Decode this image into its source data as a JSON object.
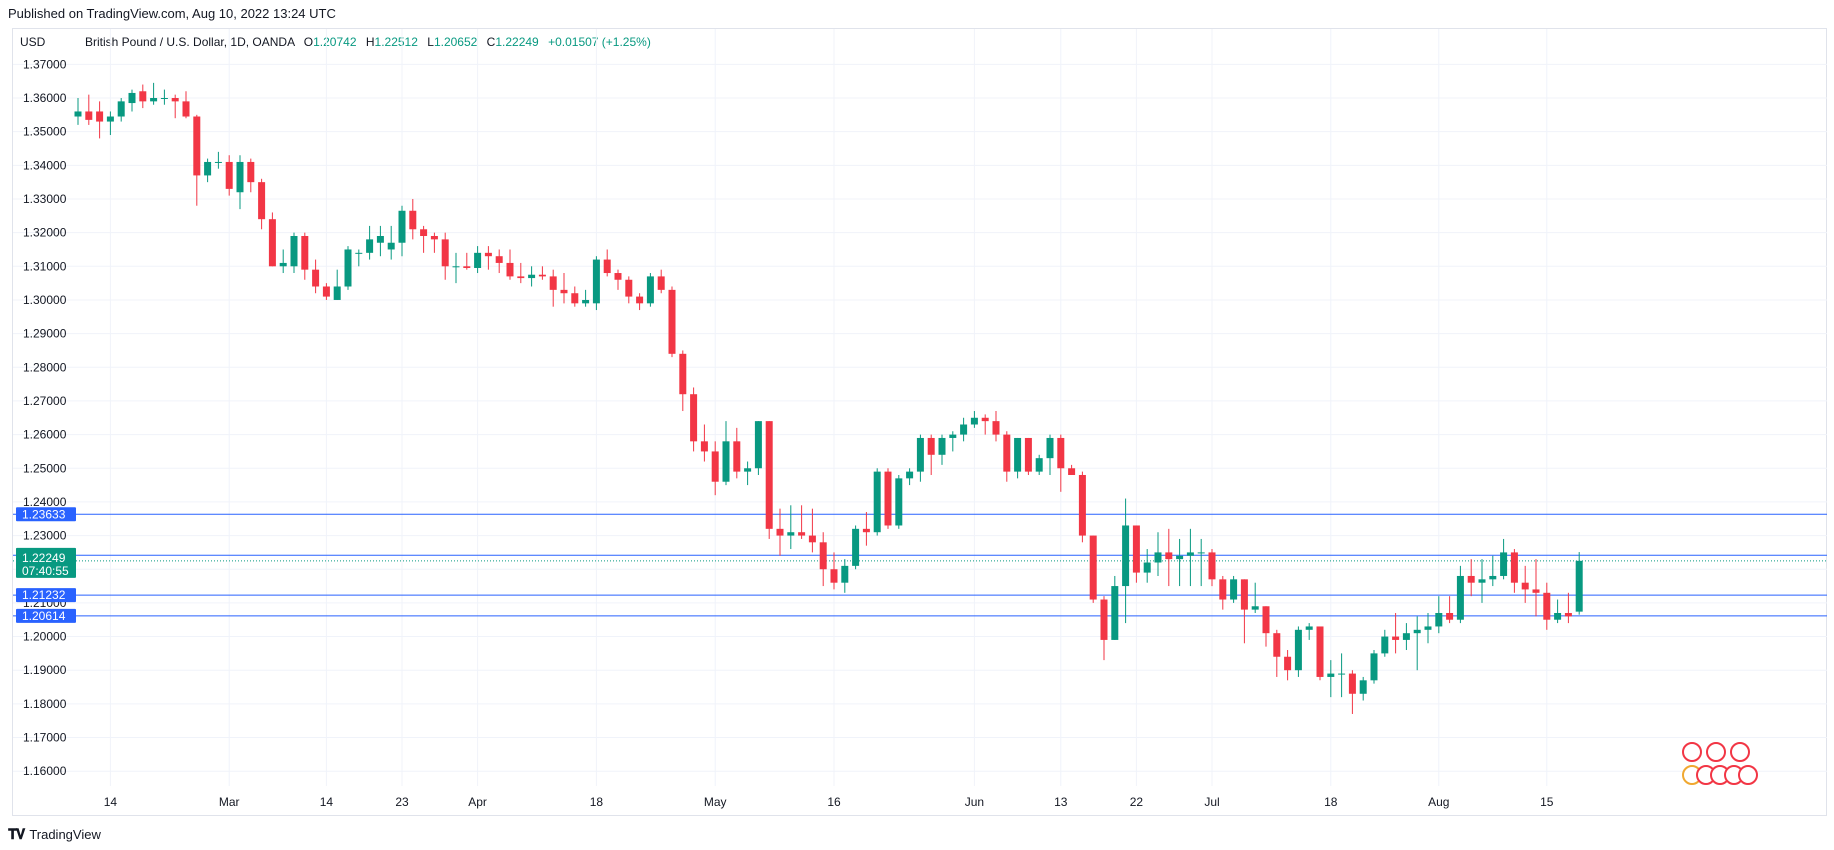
{
  "header": {
    "published": "Published on TradingView.com, Aug 10, 2022 13:24 UTC"
  },
  "footer": {
    "brand": "TradingView"
  },
  "legend": {
    "currency": "USD",
    "symbol": "British Pound / U.S. Dollar, 1D, OANDA",
    "o": "1.20742",
    "h": "1.22512",
    "l": "1.20652",
    "c": "1.22249",
    "change": "+0.01507 (+1.25%)",
    "o_label": "O",
    "h_label": "H",
    "l_label": "L",
    "c_label": "C"
  },
  "colors": {
    "up": "#089981",
    "down": "#f23645",
    "hline": "#2962ff",
    "grid": "#f0f3fa"
  },
  "chart_data": {
    "type": "candlestick",
    "symbol": "GBPUSD",
    "timeframe": "1D",
    "ylim": [
      1.16,
      1.38
    ],
    "y_ticks": [
      "1.16000",
      "1.17000",
      "1.18000",
      "1.19000",
      "1.20000",
      "1.21000",
      "1.22000",
      "1.23000",
      "1.24000",
      "1.25000",
      "1.26000",
      "1.27000",
      "1.28000",
      "1.29000",
      "1.30000",
      "1.31000",
      "1.32000",
      "1.33000",
      "1.34000",
      "1.35000",
      "1.36000",
      "1.37000"
    ],
    "x_ticks": [
      {
        "label": "14",
        "i": 3
      },
      {
        "label": "Mar",
        "i": 14
      },
      {
        "label": "14",
        "i": 23
      },
      {
        "label": "23",
        "i": 30
      },
      {
        "label": "Apr",
        "i": 37
      },
      {
        "label": "18",
        "i": 48
      },
      {
        "label": "May",
        "i": 59
      },
      {
        "label": "16",
        "i": 70
      },
      {
        "label": "Jun",
        "i": 83
      },
      {
        "label": "13",
        "i": 91
      },
      {
        "label": "22",
        "i": 98
      },
      {
        "label": "Jul",
        "i": 105
      },
      {
        "label": "18",
        "i": 116
      },
      {
        "label": "Aug",
        "i": 126
      },
      {
        "label": "15",
        "i": 136
      }
    ],
    "horizontal_lines": [
      1.23633,
      1.22415,
      1.21232,
      1.20614
    ],
    "last_price": {
      "value": "1.22249",
      "countdown": "07:40:55"
    },
    "candles": [
      [
        1.3545,
        1.36,
        1.352,
        1.356
      ],
      [
        1.356,
        1.361,
        1.352,
        1.3535
      ],
      [
        1.356,
        1.359,
        1.348,
        1.353
      ],
      [
        1.353,
        1.356,
        1.349,
        1.3545
      ],
      [
        1.3545,
        1.36,
        1.353,
        1.359
      ],
      [
        1.3585,
        1.3625,
        1.356,
        1.3615
      ],
      [
        1.362,
        1.364,
        1.357,
        1.359
      ],
      [
        1.359,
        1.3645,
        1.358,
        1.36
      ],
      [
        1.36,
        1.3625,
        1.358,
        1.36
      ],
      [
        1.36,
        1.361,
        1.354,
        1.359
      ],
      [
        1.359,
        1.362,
        1.354,
        1.3545
      ],
      [
        1.3545,
        1.355,
        1.328,
        1.337
      ],
      [
        1.337,
        1.342,
        1.335,
        1.341
      ],
      [
        1.341,
        1.344,
        1.339,
        1.341
      ],
      [
        1.341,
        1.343,
        1.331,
        1.333
      ],
      [
        1.332,
        1.343,
        1.327,
        1.341
      ],
      [
        1.341,
        1.342,
        1.332,
        1.335
      ],
      [
        1.335,
        1.336,
        1.321,
        1.324
      ],
      [
        1.324,
        1.326,
        1.31,
        1.31
      ],
      [
        1.31,
        1.315,
        1.308,
        1.311
      ],
      [
        1.31,
        1.32,
        1.308,
        1.319
      ],
      [
        1.319,
        1.32,
        1.306,
        1.309
      ],
      [
        1.309,
        1.312,
        1.302,
        1.304
      ],
      [
        1.304,
        1.305,
        1.3,
        1.301
      ],
      [
        1.3,
        1.309,
        1.3,
        1.304
      ],
      [
        1.304,
        1.316,
        1.303,
        1.315
      ],
      [
        1.314,
        1.315,
        1.31,
        1.314
      ],
      [
        1.314,
        1.322,
        1.312,
        1.318
      ],
      [
        1.317,
        1.322,
        1.313,
        1.319
      ],
      [
        1.315,
        1.322,
        1.312,
        1.317
      ],
      [
        1.317,
        1.328,
        1.313,
        1.3265
      ],
      [
        1.3265,
        1.33,
        1.318,
        1.321
      ],
      [
        1.321,
        1.322,
        1.314,
        1.319
      ],
      [
        1.319,
        1.32,
        1.314,
        1.318
      ],
      [
        1.318,
        1.32,
        1.306,
        1.31
      ],
      [
        1.31,
        1.314,
        1.305,
        1.31
      ],
      [
        1.31,
        1.314,
        1.309,
        1.3095
      ],
      [
        1.3095,
        1.316,
        1.308,
        1.314
      ],
      [
        1.314,
        1.316,
        1.309,
        1.313
      ],
      [
        1.313,
        1.315,
        1.308,
        1.311
      ],
      [
        1.311,
        1.315,
        1.306,
        1.307
      ],
      [
        1.307,
        1.311,
        1.305,
        1.3065
      ],
      [
        1.3065,
        1.31,
        1.304,
        1.3075
      ],
      [
        1.3075,
        1.31,
        1.306,
        1.307
      ],
      [
        1.307,
        1.309,
        1.298,
        1.303
      ],
      [
        1.303,
        1.308,
        1.299,
        1.302
      ],
      [
        1.302,
        1.304,
        1.298,
        1.299
      ],
      [
        1.299,
        1.303,
        1.298,
        1.3
      ],
      [
        1.299,
        1.313,
        1.297,
        1.312
      ],
      [
        1.312,
        1.315,
        1.307,
        1.308
      ],
      [
        1.308,
        1.309,
        1.303,
        1.306
      ],
      [
        1.306,
        1.307,
        1.299,
        1.301
      ],
      [
        1.301,
        1.302,
        1.297,
        1.299
      ],
      [
        1.299,
        1.308,
        1.298,
        1.307
      ],
      [
        1.307,
        1.309,
        1.302,
        1.303
      ],
      [
        1.303,
        1.304,
        1.283,
        1.284
      ],
      [
        1.284,
        1.285,
        1.267,
        1.272
      ],
      [
        1.272,
        1.274,
        1.255,
        1.258
      ],
      [
        1.258,
        1.263,
        1.252,
        1.255
      ],
      [
        1.255,
        1.258,
        1.242,
        1.246
      ],
      [
        1.246,
        1.264,
        1.245,
        1.258
      ],
      [
        1.258,
        1.262,
        1.247,
        1.249
      ],
      [
        1.249,
        1.252,
        1.245,
        1.25
      ],
      [
        1.25,
        1.264,
        1.248,
        1.264
      ],
      [
        1.264,
        1.264,
        1.229,
        1.232
      ],
      [
        1.232,
        1.238,
        1.224,
        1.23
      ],
      [
        1.23,
        1.239,
        1.226,
        1.231
      ],
      [
        1.231,
        1.239,
        1.229,
        1.23
      ],
      [
        1.23,
        1.238,
        1.225,
        1.228
      ],
      [
        1.228,
        1.231,
        1.215,
        1.22
      ],
      [
        1.22,
        1.225,
        1.214,
        1.216
      ],
      [
        1.216,
        1.223,
        1.213,
        1.221
      ],
      [
        1.221,
        1.233,
        1.22,
        1.232
      ],
      [
        1.232,
        1.237,
        1.227,
        1.231
      ],
      [
        1.231,
        1.25,
        1.23,
        1.249
      ],
      [
        1.249,
        1.25,
        1.232,
        1.233
      ],
      [
        1.233,
        1.248,
        1.232,
        1.247
      ],
      [
        1.247,
        1.25,
        1.245,
        1.249
      ],
      [
        1.249,
        1.26,
        1.246,
        1.259
      ],
      [
        1.259,
        1.26,
        1.248,
        1.254
      ],
      [
        1.254,
        1.26,
        1.251,
        1.259
      ],
      [
        1.259,
        1.261,
        1.255,
        1.26
      ],
      [
        1.26,
        1.265,
        1.258,
        1.263
      ],
      [
        1.263,
        1.267,
        1.262,
        1.265
      ],
      [
        1.265,
        1.266,
        1.26,
        1.264
      ],
      [
        1.264,
        1.267,
        1.258,
        1.26
      ],
      [
        1.26,
        1.261,
        1.246,
        1.249
      ],
      [
        1.249,
        1.259,
        1.247,
        1.259
      ],
      [
        1.259,
        1.259,
        1.248,
        1.249
      ],
      [
        1.249,
        1.254,
        1.248,
        1.253
      ],
      [
        1.253,
        1.26,
        1.248,
        1.259
      ],
      [
        1.259,
        1.26,
        1.243,
        1.25
      ],
      [
        1.25,
        1.251,
        1.248,
        1.248
      ],
      [
        1.248,
        1.249,
        1.228,
        1.23
      ],
      [
        1.23,
        1.23,
        1.21,
        1.211
      ],
      [
        1.211,
        1.212,
        1.193,
        1.199
      ],
      [
        1.199,
        1.218,
        1.199,
        1.215
      ],
      [
        1.215,
        1.241,
        1.204,
        1.233
      ],
      [
        1.233,
        1.233,
        1.216,
        1.219
      ],
      [
        1.219,
        1.226,
        1.216,
        1.222
      ],
      [
        1.222,
        1.231,
        1.218,
        1.225
      ],
      [
        1.225,
        1.232,
        1.215,
        1.223
      ],
      [
        1.223,
        1.229,
        1.215,
        1.224
      ],
      [
        1.224,
        1.232,
        1.215,
        1.225
      ],
      [
        1.225,
        1.229,
        1.215,
        1.225
      ],
      [
        1.225,
        1.226,
        1.215,
        1.217
      ],
      [
        1.217,
        1.218,
        1.208,
        1.211
      ],
      [
        1.211,
        1.218,
        1.21,
        1.217
      ],
      [
        1.217,
        1.217,
        1.198,
        1.208
      ],
      [
        1.208,
        1.216,
        1.207,
        1.209
      ],
      [
        1.209,
        1.209,
        1.197,
        1.201
      ],
      [
        1.201,
        1.202,
        1.188,
        1.194
      ],
      [
        1.194,
        1.196,
        1.187,
        1.19
      ],
      [
        1.19,
        1.203,
        1.188,
        1.202
      ],
      [
        1.202,
        1.204,
        1.199,
        1.203
      ],
      [
        1.203,
        1.203,
        1.187,
        1.188
      ],
      [
        1.188,
        1.193,
        1.182,
        1.189
      ],
      [
        1.189,
        1.195,
        1.182,
        1.189
      ],
      [
        1.189,
        1.19,
        1.177,
        1.183
      ],
      [
        1.183,
        1.188,
        1.181,
        1.187
      ],
      [
        1.187,
        1.196,
        1.186,
        1.195
      ],
      [
        1.195,
        1.202,
        1.194,
        1.2
      ],
      [
        1.2,
        1.207,
        1.195,
        1.199
      ],
      [
        1.199,
        1.204,
        1.196,
        1.201
      ],
      [
        1.201,
        1.206,
        1.19,
        1.202
      ],
      [
        1.202,
        1.207,
        1.198,
        1.203
      ],
      [
        1.203,
        1.212,
        1.201,
        1.207
      ],
      [
        1.207,
        1.212,
        1.204,
        1.205
      ],
      [
        1.205,
        1.221,
        1.204,
        1.218
      ],
      [
        1.218,
        1.223,
        1.212,
        1.216
      ],
      [
        1.216,
        1.223,
        1.21,
        1.217
      ],
      [
        1.217,
        1.224,
        1.215,
        1.218
      ],
      [
        1.218,
        1.229,
        1.217,
        1.225
      ],
      [
        1.225,
        1.226,
        1.213,
        1.216
      ],
      [
        1.216,
        1.221,
        1.21,
        1.214
      ],
      [
        1.214,
        1.223,
        1.206,
        1.213
      ],
      [
        1.213,
        1.216,
        1.202,
        1.205
      ],
      [
        1.205,
        1.211,
        1.204,
        1.207
      ],
      [
        1.207,
        1.213,
        1.204,
        1.206
      ],
      [
        1.2074,
        1.2251,
        1.2065,
        1.2225
      ]
    ]
  }
}
